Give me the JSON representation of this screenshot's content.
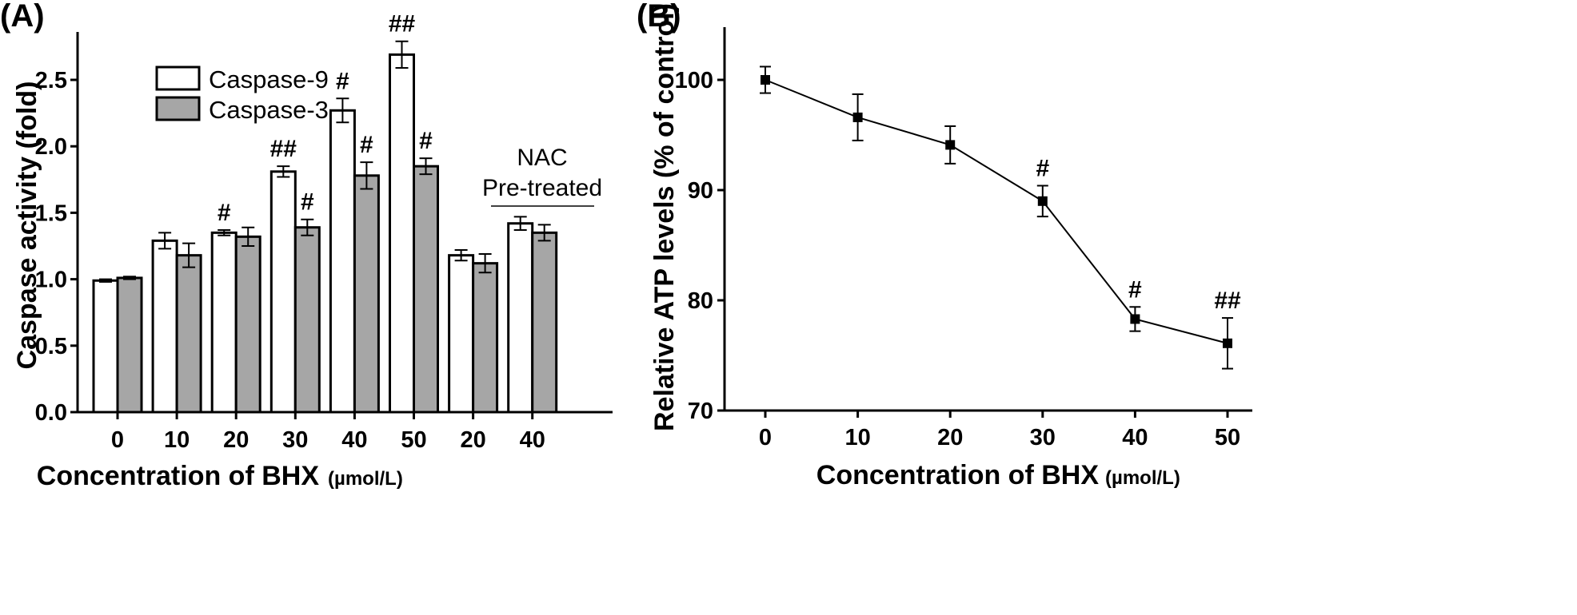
{
  "chart_data": [
    {
      "type": "bar",
      "panel_label": "(A)",
      "xlabel": "Concentration of BHX",
      "xlabel_unit": "(µmol/L)",
      "ylabel": "Caspase activity (fold)",
      "ylim": [
        0,
        2.8
      ],
      "yticks": [
        "0.0",
        "0.5",
        "1.0",
        "1.5",
        "2.0",
        "2.5"
      ],
      "categories": [
        "0",
        "10",
        "20",
        "30",
        "40",
        "50",
        "20",
        "40"
      ],
      "group_annotation": {
        "lines": [
          "NAC",
          "Pre-treated"
        ],
        "applies_to_categories": [
          6,
          7
        ]
      },
      "legend_position": "top-left",
      "series": [
        {
          "name": "Caspase-9",
          "color": "#ffffff",
          "values": [
            0.99,
            1.29,
            1.35,
            1.81,
            2.27,
            2.69,
            1.18,
            1.42
          ],
          "errors": [
            0.01,
            0.06,
            0.02,
            0.04,
            0.09,
            0.1,
            0.04,
            0.05
          ],
          "significance": [
            "",
            "",
            "#",
            "##",
            "#",
            "##",
            "",
            ""
          ]
        },
        {
          "name": "Caspase-3",
          "color": "#a6a6a6",
          "values": [
            1.01,
            1.18,
            1.32,
            1.39,
            1.78,
            1.85,
            1.12,
            1.35
          ],
          "errors": [
            0.01,
            0.09,
            0.07,
            0.06,
            0.1,
            0.06,
            0.07,
            0.06
          ],
          "significance": [
            "",
            "",
            "",
            "#",
            "#",
            "#",
            "",
            ""
          ]
        }
      ]
    },
    {
      "type": "line",
      "panel_label": "(B)",
      "xlabel": "Concentration of BHX",
      "xlabel_unit": "(µmol/L)",
      "ylabel": "Relative ATP levels (% of control)",
      "xlim": [
        -3.5,
        53
      ],
      "ylim": [
        70,
        105
      ],
      "xticks": [
        "0",
        "10",
        "20",
        "30",
        "40",
        "50"
      ],
      "yticks": [
        "70",
        "80",
        "90",
        "100"
      ],
      "series": [
        {
          "x": [
            0,
            10,
            20,
            30,
            40,
            50
          ],
          "y": [
            100.0,
            96.6,
            94.1,
            89.0,
            78.3,
            76.1
          ],
          "errors": [
            1.2,
            2.1,
            1.7,
            1.4,
            1.1,
            2.3
          ],
          "significance": [
            "",
            "",
            "",
            "#",
            "#",
            "##"
          ]
        }
      ]
    }
  ]
}
